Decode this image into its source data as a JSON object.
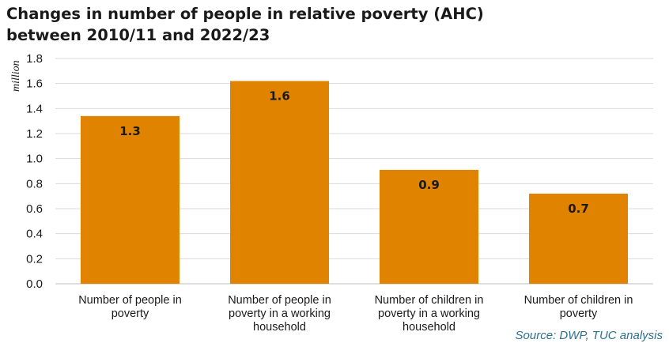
{
  "chart_data": {
    "type": "bar",
    "title_lines": [
      "Changes in number of people in relative poverty (AHC)",
      "between 2010/11 and 2022/23"
    ],
    "ylabel": "million",
    "xlabel": "",
    "ylim": [
      0,
      1.8
    ],
    "yticks": [
      "0.0",
      "0.2",
      "0.4",
      "0.6",
      "0.8",
      "1.0",
      "1.2",
      "1.4",
      "1.6",
      "1.8"
    ],
    "grid": true,
    "legend": "none",
    "categories": [
      [
        "Number of people in",
        "poverty"
      ],
      [
        "Number of people in",
        "poverty in a working",
        "household"
      ],
      [
        "Number of children in",
        "poverty in a working",
        "household"
      ],
      [
        "Number of children in",
        "poverty"
      ]
    ],
    "values": [
      1.34,
      1.62,
      0.91,
      0.72
    ],
    "data_labels": [
      "1.3",
      "1.6",
      "0.9",
      "0.7"
    ],
    "bar_color": "#e08300"
  },
  "source": "Source: DWP, TUC analysis"
}
